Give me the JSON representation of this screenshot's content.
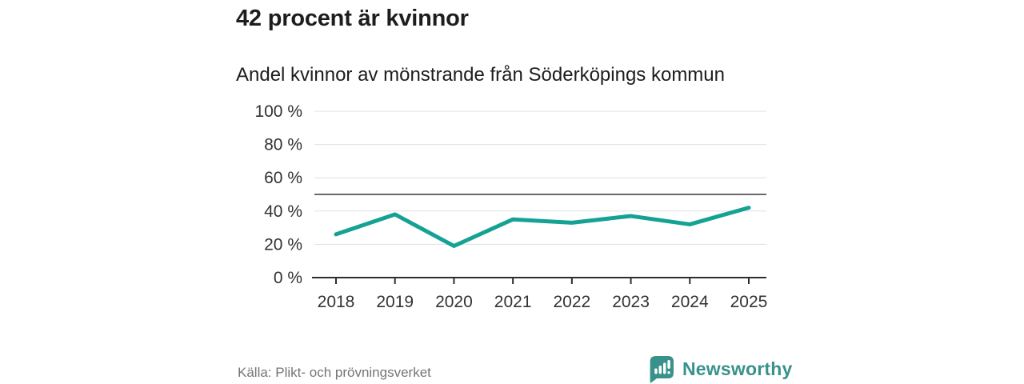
{
  "header": {
    "title": "42 procent är kvinnor",
    "subtitle": "Andel kvinnor av mönstrande från Söderköpings kommun"
  },
  "chart_data": {
    "type": "line",
    "title": "42 procent är kvinnor",
    "subtitle": "Andel kvinnor av mönstrande från Söderköpings kommun",
    "categories": [
      "2018",
      "2019",
      "2020",
      "2021",
      "2022",
      "2023",
      "2024",
      "2025"
    ],
    "series": [
      {
        "name": "Andel kvinnor av mönstrande",
        "values": [
          26,
          38,
          19,
          35,
          33,
          37,
          32,
          42
        ]
      }
    ],
    "xlabel": "",
    "ylabel": "",
    "ylim": [
      0,
      100
    ],
    "yticks": [
      0,
      20,
      40,
      60,
      80,
      100
    ],
    "ytick_suffix": " %",
    "reference_line": 50,
    "grid": true,
    "legend_position": "none",
    "colors": {
      "line": "#15a294",
      "grid": "#e0e0e0",
      "reference_line": "#6a6a6a",
      "axis": "#2e2e2e",
      "tick_label": "#333333"
    }
  },
  "footer": {
    "source": "Källa: Plikt- och prövningsverket",
    "brand": "Newsworthy",
    "brand_color": "#38928b"
  }
}
